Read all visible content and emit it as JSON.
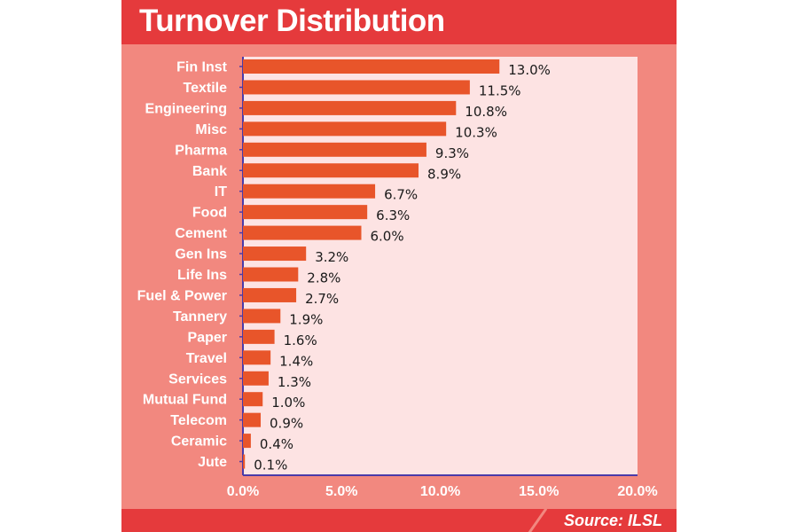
{
  "title": "Turnover Distribution",
  "source": "Source: ILSL",
  "colors": {
    "panel": "#f2887f",
    "header": "#e53a3c",
    "plot_bg": "#fde3e3",
    "bar": "#e8552a",
    "axis": "#4a3aa8"
  },
  "chart_data": {
    "type": "bar",
    "orientation": "horizontal",
    "title": "Turnover Distribution",
    "xlabel": "",
    "ylabel": "",
    "xlim": [
      0,
      20
    ],
    "ticks": [
      0,
      5,
      10,
      15,
      20
    ],
    "tick_labels": [
      "0.0%",
      "5.0%",
      "10.0%",
      "15.0%",
      "20.0%"
    ],
    "categories": [
      "Fin Inst",
      "Textile",
      "Engineering",
      "Misc",
      "Pharma",
      "Bank",
      "IT",
      "Food",
      "Cement",
      "Gen Ins",
      "Life Ins",
      "Fuel & Power",
      "Tannery",
      "Paper",
      "Travel",
      "Services",
      "Mutual Fund",
      "Telecom",
      "Ceramic",
      "Jute"
    ],
    "values": [
      13.0,
      11.5,
      10.8,
      10.3,
      9.3,
      8.9,
      6.7,
      6.3,
      6.0,
      3.2,
      2.8,
      2.7,
      1.9,
      1.6,
      1.4,
      1.3,
      1.0,
      0.9,
      0.4,
      0.1
    ],
    "value_labels": [
      "13.0%",
      "11.5%",
      "10.8%",
      "10.3%",
      "9.3%",
      "8.9%",
      "6.7%",
      "6.3%",
      "6.0%",
      "3.2%",
      "2.8%",
      "2.7%",
      "1.9%",
      "1.6%",
      "1.4%",
      "1.3%",
      "1.0%",
      "0.9%",
      "0.4%",
      "0.1%"
    ],
    "grid": false,
    "legend": "none"
  }
}
